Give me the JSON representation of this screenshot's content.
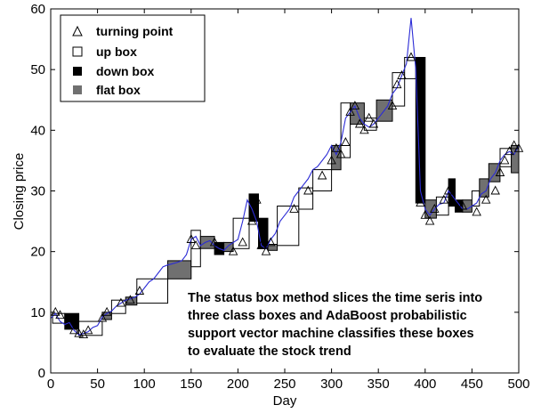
{
  "chart_data": {
    "type": "line",
    "xlabel": "Day",
    "ylabel": "Closing price",
    "xlim": [
      0,
      500
    ],
    "ylim": [
      0,
      60
    ],
    "xticks": [
      0,
      50,
      100,
      150,
      200,
      250,
      300,
      350,
      400,
      450,
      500
    ],
    "yticks": [
      0,
      10,
      20,
      30,
      40,
      50,
      60
    ],
    "grid": false,
    "legend_position": "top-left",
    "legend": [
      {
        "key": "turning",
        "label": "turning point"
      },
      {
        "key": "up",
        "label": "up box"
      },
      {
        "key": "down",
        "label": "down box"
      },
      {
        "key": "flat",
        "label": "flat box"
      }
    ],
    "colors": {
      "line": "#2b2bd6",
      "up": "#ffffff",
      "down": "#000000",
      "flat": "#707070"
    },
    "annotation": [
      "The status box method slices the time seris into",
      "three class boxes and AdaBoost probabilistic",
      "support vector machine classifies these boxes",
      "to evaluate the stock trend"
    ],
    "price_series": {
      "x": [
        0,
        5,
        10,
        15,
        20,
        25,
        30,
        35,
        40,
        45,
        50,
        55,
        60,
        65,
        70,
        75,
        80,
        85,
        90,
        95,
        100,
        105,
        110,
        115,
        120,
        125,
        130,
        135,
        140,
        145,
        150,
        155,
        160,
        165,
        170,
        175,
        180,
        185,
        190,
        195,
        200,
        205,
        210,
        215,
        220,
        225,
        230,
        235,
        240,
        245,
        250,
        255,
        260,
        265,
        270,
        275,
        280,
        285,
        290,
        295,
        300,
        305,
        310,
        315,
        320,
        325,
        330,
        335,
        340,
        345,
        350,
        355,
        360,
        365,
        370,
        375,
        380,
        385,
        390,
        395,
        400,
        405,
        410,
        415,
        420,
        425,
        430,
        435,
        440,
        445,
        450,
        455,
        460,
        465,
        470,
        475,
        480,
        485,
        490,
        495,
        500
      ],
      "y": [
        9,
        9.8,
        8.5,
        8,
        8.3,
        7,
        6.3,
        6.5,
        6.8,
        7.5,
        7.8,
        9.2,
        9.8,
        10.2,
        11,
        11.5,
        12,
        12.2,
        12.5,
        13,
        14,
        15,
        15.5,
        16.5,
        17.5,
        17.8,
        18,
        18.2,
        18.5,
        19.5,
        22,
        22.5,
        21,
        21.5,
        21.8,
        21,
        20.5,
        20.2,
        21,
        21.5,
        22,
        25,
        28.5,
        27,
        25,
        21,
        20.5,
        22,
        23,
        25,
        26,
        27,
        29,
        30,
        31,
        32,
        33.5,
        34,
        35,
        36,
        37.5,
        36,
        38,
        42,
        43,
        44,
        42,
        41,
        40.5,
        41,
        42,
        43,
        44,
        46,
        47,
        49,
        51,
        58.5,
        50,
        30,
        27,
        26,
        27,
        27.8,
        28,
        30,
        29,
        28,
        27,
        27,
        27.5,
        28,
        29.5,
        30,
        32,
        33,
        35,
        36,
        36.5,
        36,
        37.5
      ]
    },
    "turning_points": {
      "x": [
        5,
        10,
        25,
        30,
        35,
        40,
        55,
        60,
        75,
        85,
        95,
        150,
        155,
        175,
        195,
        205,
        215,
        220,
        225,
        230,
        235,
        260,
        275,
        290,
        300,
        305,
        310,
        315,
        320,
        325,
        330,
        335,
        340,
        345,
        365,
        370,
        375,
        385,
        395,
        400,
        405,
        410,
        420,
        425,
        440,
        455,
        465,
        475,
        480,
        485,
        490,
        495,
        500
      ],
      "y": [
        10,
        9.5,
        7,
        6.5,
        6.3,
        7,
        9,
        10,
        11.5,
        12,
        13.5,
        22,
        21,
        21.5,
        20,
        21.5,
        25,
        28.5,
        21,
        20,
        21.5,
        27,
        30,
        32.5,
        35,
        37,
        36,
        38,
        43,
        44,
        41,
        40,
        42,
        41,
        44,
        47.5,
        49,
        52,
        28,
        26,
        25,
        27,
        28.5,
        30,
        27.5,
        26.5,
        28.5,
        30,
        33,
        35,
        36.5,
        37.5,
        37
      ]
    },
    "boxes": [
      {
        "type": "up",
        "x0": 2,
        "x1": 15,
        "y0": 8.2,
        "y1": 9.8
      },
      {
        "type": "down",
        "x0": 15,
        "x1": 30,
        "y0": 7.2,
        "y1": 9.8
      },
      {
        "type": "up",
        "x0": 30,
        "x1": 55,
        "y0": 6.2,
        "y1": 8.5
      },
      {
        "type": "flat",
        "x0": 55,
        "x1": 65,
        "y0": 8.8,
        "y1": 10
      },
      {
        "type": "up",
        "x0": 65,
        "x1": 80,
        "y0": 9.8,
        "y1": 12
      },
      {
        "type": "flat",
        "x0": 80,
        "x1": 92,
        "y0": 11.2,
        "y1": 12.5
      },
      {
        "type": "up",
        "x0": 92,
        "x1": 125,
        "y0": 11.5,
        "y1": 15.5
      },
      {
        "type": "flat",
        "x0": 125,
        "x1": 150,
        "y0": 15.5,
        "y1": 18.5
      },
      {
        "type": "up",
        "x0": 150,
        "x1": 160,
        "y0": 17.5,
        "y1": 23.5
      },
      {
        "type": "flat",
        "x0": 160,
        "x1": 175,
        "y0": 20.5,
        "y1": 22.5
      },
      {
        "type": "down",
        "x0": 175,
        "x1": 185,
        "y0": 19.5,
        "y1": 21.5
      },
      {
        "type": "flat",
        "x0": 185,
        "x1": 195,
        "y0": 20,
        "y1": 21.5
      },
      {
        "type": "up",
        "x0": 195,
        "x1": 212,
        "y0": 20.5,
        "y1": 25.5
      },
      {
        "type": "down",
        "x0": 212,
        "x1": 222,
        "y0": 25,
        "y1": 29.5
      },
      {
        "type": "down",
        "x0": 222,
        "x1": 232,
        "y0": 20.5,
        "y1": 25.5
      },
      {
        "type": "flat",
        "x0": 232,
        "x1": 242,
        "y0": 20.2,
        "y1": 21.2
      },
      {
        "type": "up",
        "x0": 242,
        "x1": 265,
        "y0": 21,
        "y1": 27.5
      },
      {
        "type": "up",
        "x0": 265,
        "x1": 280,
        "y0": 27,
        "y1": 30.5
      },
      {
        "type": "up",
        "x0": 280,
        "x1": 300,
        "y0": 30,
        "y1": 33.5
      },
      {
        "type": "flat",
        "x0": 300,
        "x1": 310,
        "y0": 33.5,
        "y1": 37.5
      },
      {
        "type": "up",
        "x0": 310,
        "x1": 320,
        "y0": 35.5,
        "y1": 44.5
      },
      {
        "type": "flat",
        "x0": 320,
        "x1": 335,
        "y0": 41,
        "y1": 44.5
      },
      {
        "type": "up",
        "x0": 335,
        "x1": 348,
        "y0": 40,
        "y1": 42
      },
      {
        "type": "flat",
        "x0": 348,
        "x1": 365,
        "y0": 41.5,
        "y1": 45
      },
      {
        "type": "up",
        "x0": 365,
        "x1": 378,
        "y0": 44,
        "y1": 49.5
      },
      {
        "type": "up",
        "x0": 378,
        "x1": 390,
        "y0": 48.5,
        "y1": 52
      },
      {
        "type": "down",
        "x0": 390,
        "x1": 400,
        "y0": 28,
        "y1": 52
      },
      {
        "type": "flat",
        "x0": 400,
        "x1": 412,
        "y0": 25.5,
        "y1": 28.5
      },
      {
        "type": "up",
        "x0": 412,
        "x1": 425,
        "y0": 26,
        "y1": 29
      },
      {
        "type": "down",
        "x0": 425,
        "x1": 432,
        "y0": 27.5,
        "y1": 32
      },
      {
        "type": "down",
        "x0": 432,
        "x1": 440,
        "y0": 26.5,
        "y1": 28.5
      },
      {
        "type": "flat",
        "x0": 440,
        "x1": 450,
        "y0": 26.5,
        "y1": 28.5
      },
      {
        "type": "up",
        "x0": 450,
        "x1": 458,
        "y0": 27.5,
        "y1": 30
      },
      {
        "type": "flat",
        "x0": 458,
        "x1": 468,
        "y0": 29,
        "y1": 32
      },
      {
        "type": "flat",
        "x0": 468,
        "x1": 480,
        "y0": 31.5,
        "y1": 34.5
      },
      {
        "type": "up",
        "x0": 480,
        "x1": 492,
        "y0": 34,
        "y1": 37
      },
      {
        "type": "flat",
        "x0": 492,
        "x1": 500,
        "y0": 33,
        "y1": 37.5
      }
    ]
  }
}
